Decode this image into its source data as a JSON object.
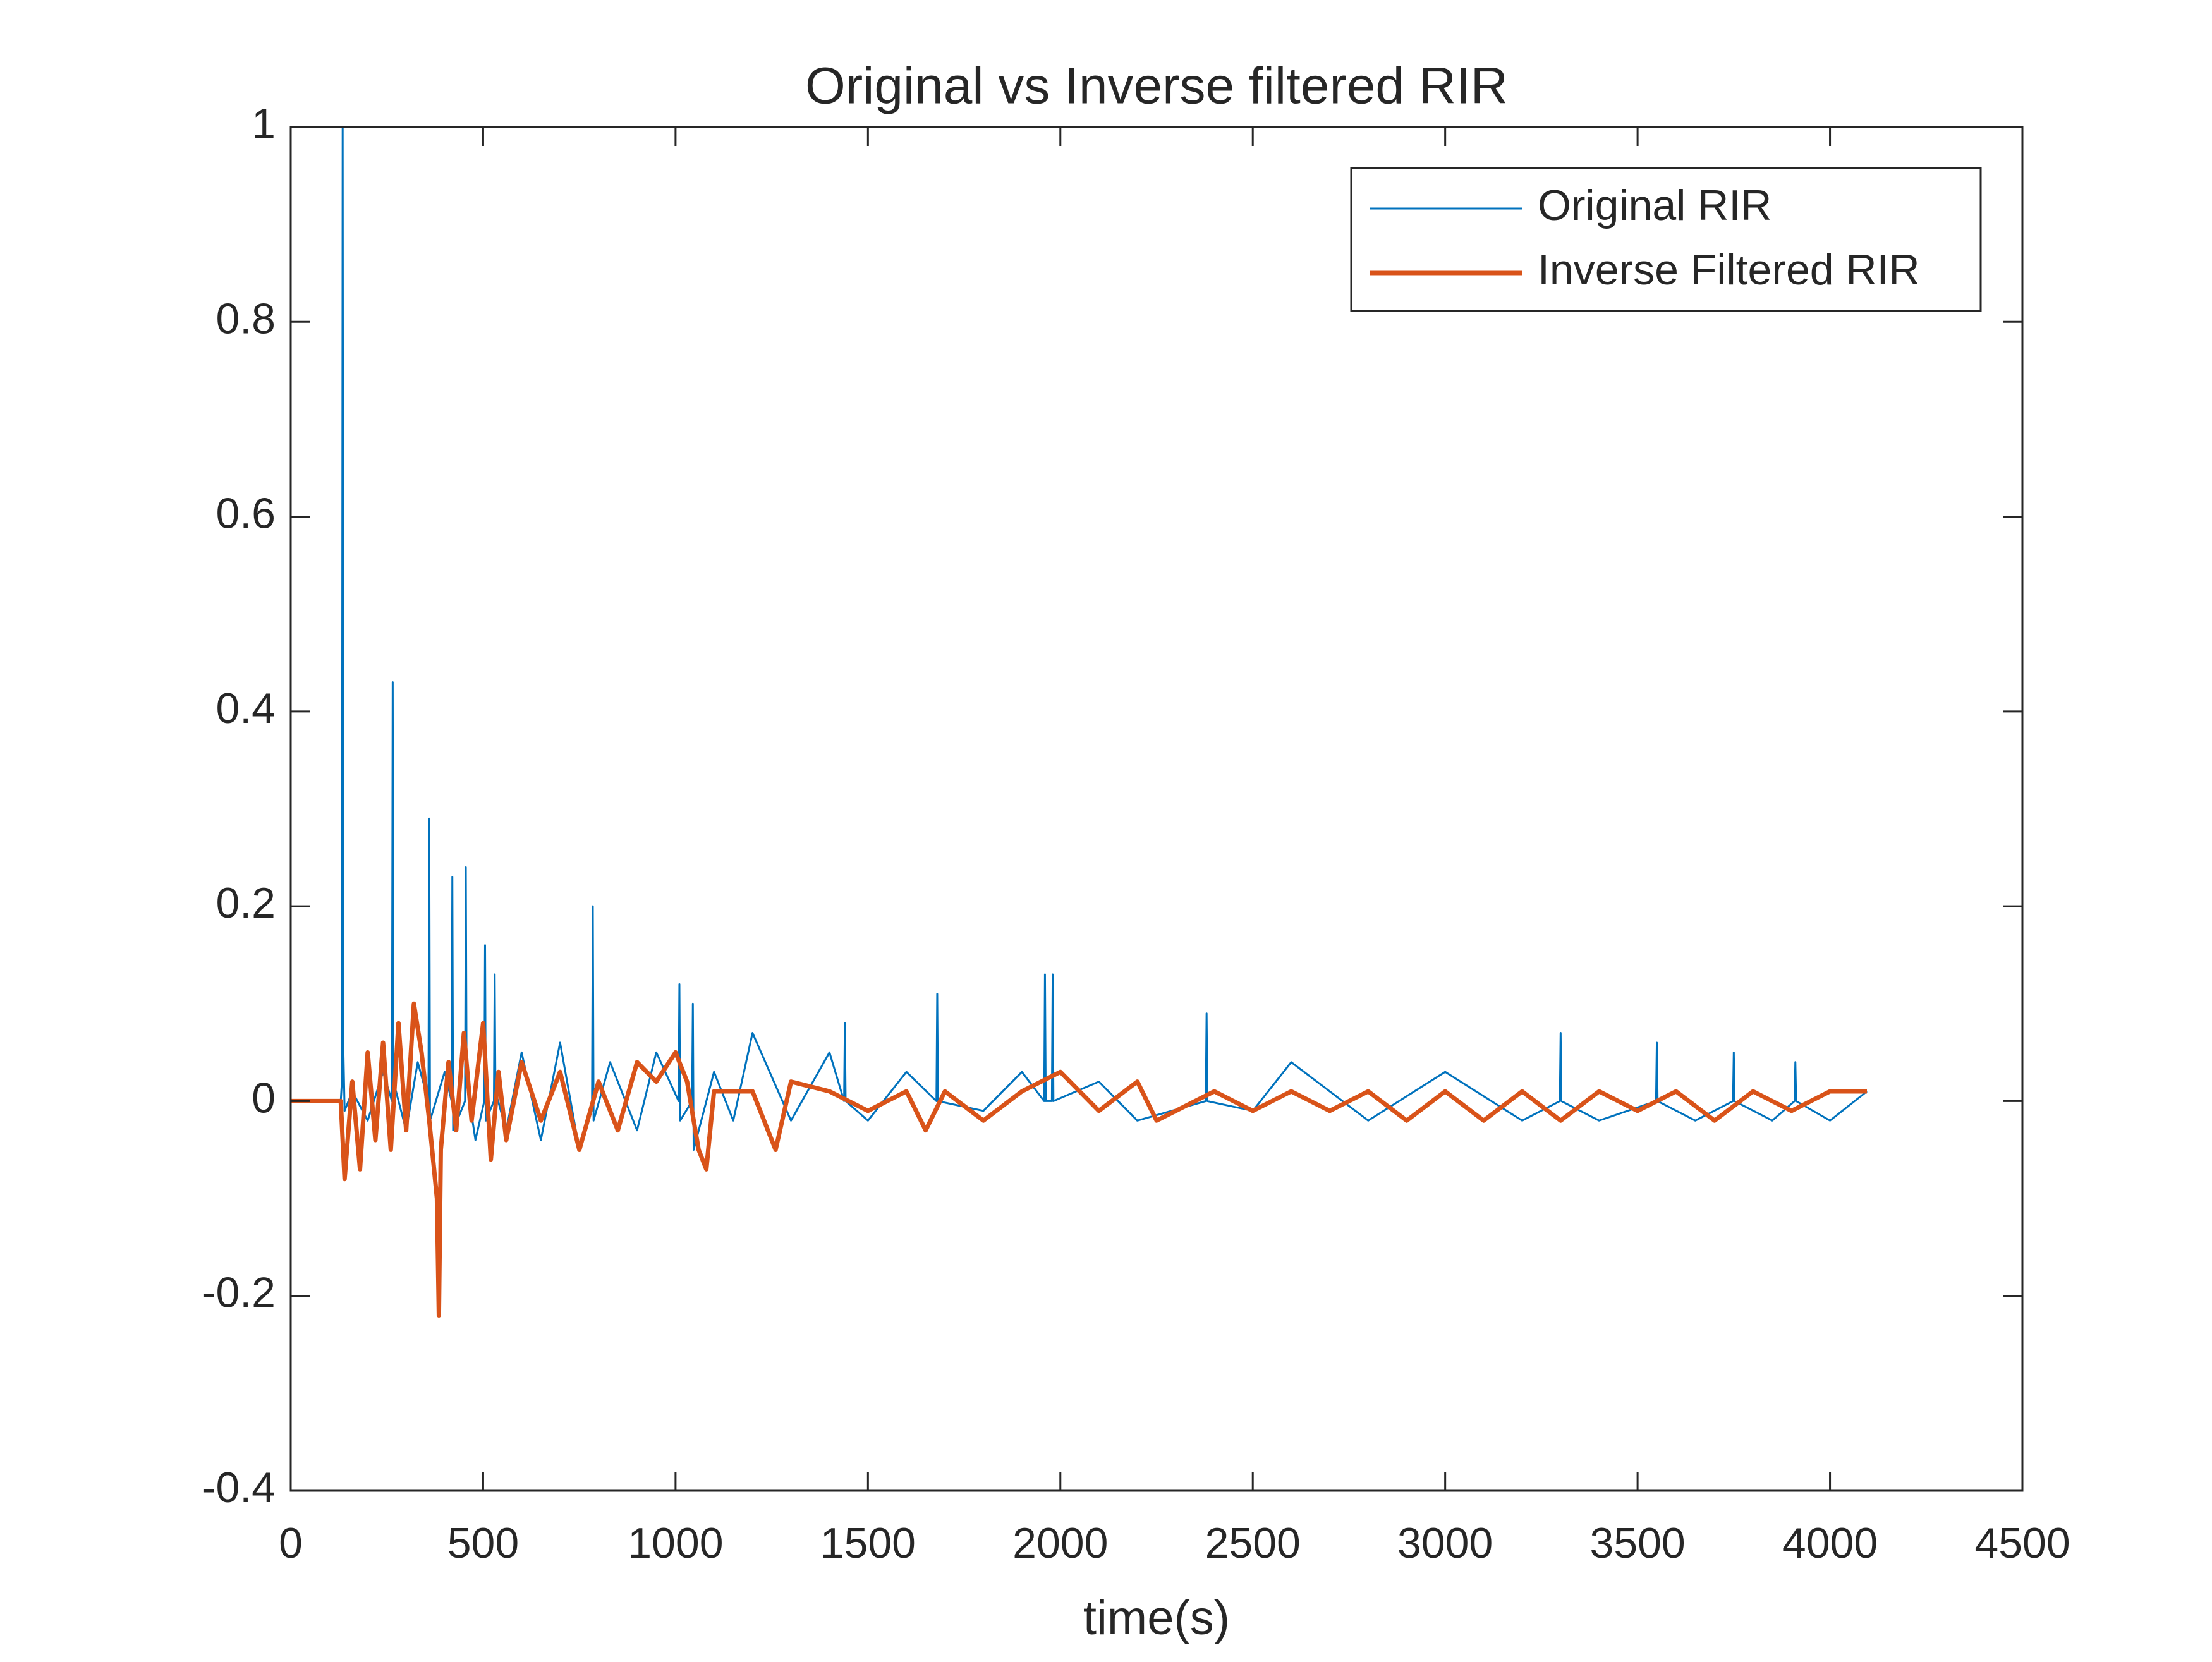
{
  "chart_data": {
    "type": "line",
    "title": "Original vs Inverse filtered RIR",
    "x_label": "time(s)",
    "xlim": [
      0,
      4500
    ],
    "xticks": [
      0,
      500,
      1000,
      1500,
      2000,
      2500,
      3000,
      3500,
      4000,
      4500
    ],
    "ylim": [
      -0.4,
      1
    ],
    "yticks": [
      -0.4,
      -0.2,
      0,
      0.2,
      0.4,
      0.6,
      0.8,
      1
    ],
    "grid": false,
    "legend": "northeast",
    "series": [
      {
        "name": "Original RIR",
        "color": "#0072bd",
        "x": [
          0,
          130,
          133,
          135,
          137,
          140,
          160,
          200,
          240,
          263,
          265,
          267,
          300,
          330,
          358,
          360,
          362,
          400,
          418,
          420,
          422,
          453,
          455,
          457,
          480,
          503,
          505,
          507,
          528,
          530,
          532,
          560,
          600,
          650,
          700,
          750,
          783,
          785,
          787,
          830,
          900,
          950,
          1008,
          1010,
          1012,
          1043,
          1045,
          1047,
          1100,
          1150,
          1200,
          1300,
          1400,
          1438,
          1440,
          1442,
          1500,
          1600,
          1678,
          1680,
          1682,
          1800,
          1900,
          1958,
          1960,
          1962,
          1978,
          1980,
          1982,
          2100,
          2200,
          2378,
          2380,
          2382,
          2500,
          2600,
          2800,
          3000,
          3200,
          3298,
          3300,
          3302,
          3400,
          3548,
          3550,
          3552,
          3650,
          3748,
          3750,
          3752,
          3850,
          3908,
          3910,
          3912,
          4000,
          4096
        ],
        "values": [
          0,
          0,
          0.02,
          1,
          0.05,
          -0.01,
          0.01,
          -0.02,
          0.03,
          0,
          0.43,
          0.02,
          -0.03,
          0.04,
          0,
          0.29,
          -0.02,
          0.03,
          0,
          0.23,
          -0.03,
          0,
          0.24,
          0.02,
          -0.04,
          0,
          0.16,
          -0.02,
          0,
          0.13,
          0.01,
          -0.03,
          0.05,
          -0.04,
          0.06,
          -0.05,
          0,
          0.2,
          -0.02,
          0.04,
          -0.03,
          0.05,
          0,
          0.12,
          -0.02,
          0,
          0.1,
          -0.05,
          0.03,
          -0.02,
          0.07,
          -0.02,
          0.05,
          0,
          0.08,
          0,
          -0.02,
          0.03,
          0,
          0.11,
          0,
          -0.01,
          0.03,
          0,
          0.13,
          0,
          0,
          0.13,
          0,
          0.02,
          -0.02,
          0,
          0.09,
          0,
          -0.01,
          0.04,
          -0.02,
          0.03,
          -0.02,
          0,
          0.07,
          0,
          -0.02,
          0,
          0.06,
          0,
          -0.02,
          0,
          0.05,
          0,
          -0.02,
          0,
          0.04,
          0,
          -0.02,
          0.01
        ]
      },
      {
        "name": "Inverse Filtered RIR",
        "color": "#d95319",
        "x": [
          0,
          130,
          140,
          160,
          180,
          200,
          220,
          240,
          260,
          280,
          300,
          320,
          340,
          360,
          380,
          385,
          390,
          410,
          430,
          450,
          470,
          500,
          520,
          540,
          560,
          600,
          650,
          700,
          750,
          800,
          850,
          900,
          950,
          1000,
          1030,
          1060,
          1080,
          1100,
          1200,
          1260,
          1300,
          1400,
          1500,
          1600,
          1650,
          1700,
          1800,
          1900,
          2000,
          2100,
          2200,
          2250,
          2300,
          2400,
          2500,
          2600,
          2700,
          2800,
          2900,
          3000,
          3100,
          3200,
          3300,
          3400,
          3500,
          3600,
          3700,
          3800,
          3900,
          4000,
          4096
        ],
        "values": [
          0,
          0,
          -0.08,
          0.02,
          -0.07,
          0.05,
          -0.04,
          0.06,
          -0.05,
          0.08,
          -0.03,
          0.1,
          0.05,
          -0.02,
          -0.1,
          -0.22,
          -0.05,
          0.04,
          -0.03,
          0.07,
          -0.02,
          0.08,
          -0.06,
          0.03,
          -0.04,
          0.04,
          -0.02,
          0.03,
          -0.05,
          0.02,
          -0.03,
          0.04,
          0.02,
          0.05,
          0.02,
          -0.05,
          -0.07,
          0.01,
          0.01,
          -0.05,
          0.02,
          0.01,
          -0.01,
          0.01,
          -0.03,
          0.01,
          -0.02,
          0.01,
          0.03,
          -0.01,
          0.02,
          -0.02,
          -0.01,
          0.01,
          -0.01,
          0.01,
          -0.01,
          0.01,
          -0.02,
          0.01,
          -0.02,
          0.01,
          -0.02,
          0.01,
          -0.01,
          0.01,
          -0.02,
          0.01,
          -0.01,
          0.01,
          0.01
        ]
      }
    ]
  }
}
